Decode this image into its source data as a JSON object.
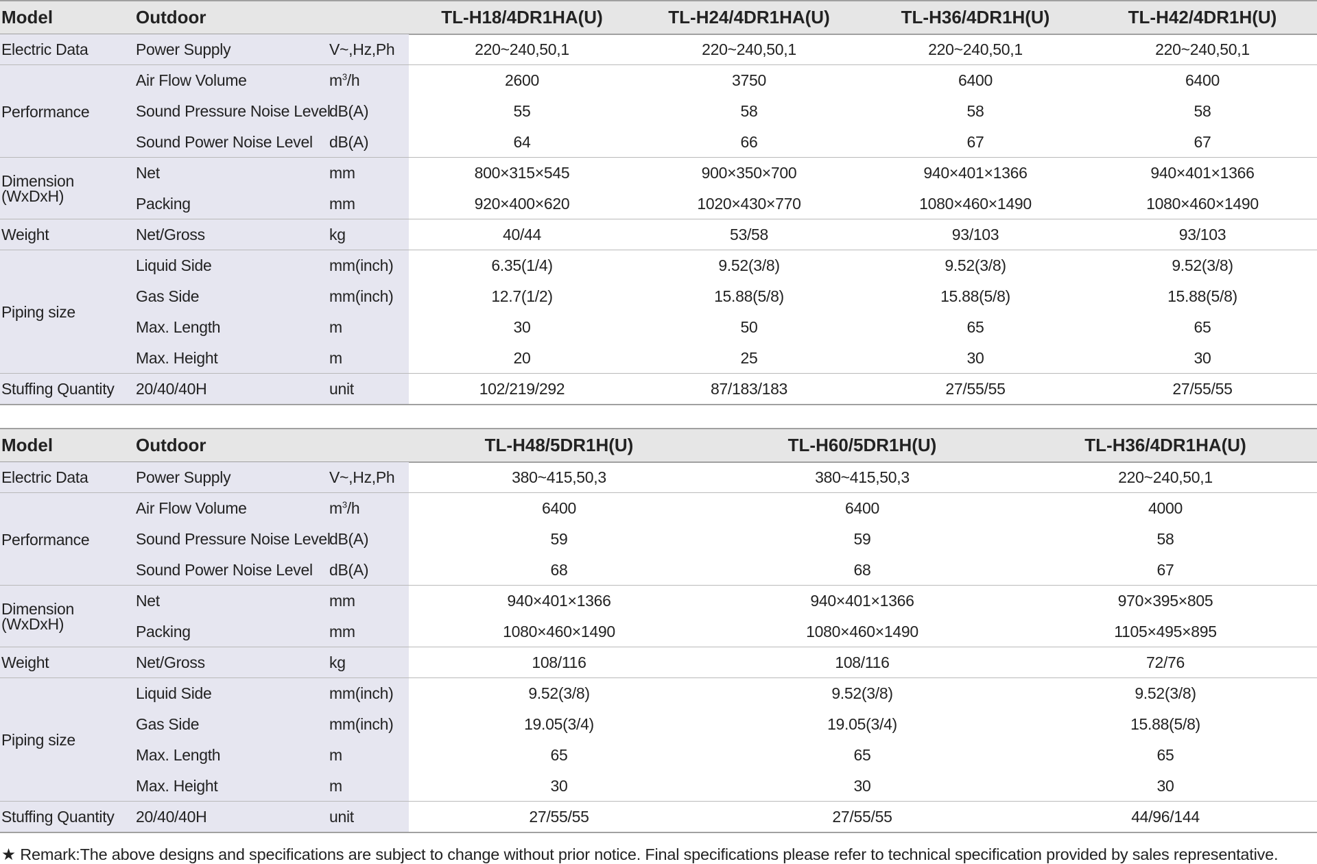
{
  "tables": [
    {
      "header": {
        "model": "Model",
        "outdoor": "Outdoor",
        "models": [
          "TL-H18/4DR1HA(U)",
          "TL-H24/4DR1HA(U)",
          "TL-H36/4DR1H(U)",
          "TL-H42/4DR1H(U)"
        ]
      },
      "rows": [
        {
          "category": "Electric Data",
          "item": "Power Supply",
          "unit": "V~,Hz,Ph",
          "values": [
            "220~240,50,1",
            "220~240,50,1",
            "220~240,50,1",
            "220~240,50,1"
          ]
        },
        {
          "category": "",
          "item": "Air Flow Volume",
          "unit": "m³/h",
          "values": [
            "2600",
            "3750",
            "6400",
            "6400"
          ]
        },
        {
          "category": "",
          "item": "Sound Pressure Noise Level",
          "unit": "dB(A)",
          "values": [
            "55",
            "58",
            "58",
            "58"
          ]
        },
        {
          "category": "",
          "item": "Sound Power Noise Level",
          "unit": "dB(A)",
          "values": [
            "64",
            "66",
            "67",
            "67"
          ]
        },
        {
          "category": "",
          "item": "Net",
          "unit": "mm",
          "values": [
            "800×315×545",
            "900×350×700",
            "940×401×1366",
            "940×401×1366"
          ]
        },
        {
          "category": "",
          "item": "Packing",
          "unit": "mm",
          "values": [
            "920×400×620",
            "1020×430×770",
            "1080×460×1490",
            "1080×460×1490"
          ]
        },
        {
          "category": "Weight",
          "item": "Net/Gross",
          "unit": "kg",
          "values": [
            "40/44",
            "53/58",
            "93/103",
            "93/103"
          ]
        },
        {
          "category": "",
          "item": "Liquid Side",
          "unit": "mm(inch)",
          "values": [
            "6.35(1/4)",
            "9.52(3/8)",
            "9.52(3/8)",
            "9.52(3/8)"
          ]
        },
        {
          "category": "",
          "item": "Gas Side",
          "unit": "mm(inch)",
          "values": [
            "12.7(1/2)",
            "15.88(5/8)",
            "15.88(5/8)",
            "15.88(5/8)"
          ]
        },
        {
          "category": "",
          "item": "Max. Length",
          "unit": "m",
          "values": [
            "30",
            "50",
            "65",
            "65"
          ]
        },
        {
          "category": "",
          "item": "Max. Height",
          "unit": "m",
          "values": [
            "20",
            "25",
            "30",
            "30"
          ]
        },
        {
          "category": "Stuffing Quantity",
          "item": "20/40/40H",
          "unit": "unit",
          "values": [
            "102/219/292",
            "87/183/183",
            "27/55/55",
            "27/55/55"
          ]
        }
      ],
      "groups": {
        "performance": "Performance",
        "dimension": "Dimension\n(WxDxH)",
        "piping": "Piping size"
      }
    },
    {
      "header": {
        "model": "Model",
        "outdoor": "Outdoor",
        "models": [
          "TL-H48/5DR1H(U)",
          "TL-H60/5DR1H(U)",
          "TL-H36/4DR1HA(U)"
        ]
      },
      "rows": [
        {
          "category": "Electric Data",
          "item": "Power Supply",
          "unit": "V~,Hz,Ph",
          "values": [
            "380~415,50,3",
            "380~415,50,3",
            "220~240,50,1"
          ]
        },
        {
          "category": "",
          "item": "Air Flow Volume",
          "unit": "m³/h",
          "values": [
            "6400",
            "6400",
            "4000"
          ]
        },
        {
          "category": "",
          "item": "Sound Pressure Noise Level",
          "unit": "dB(A)",
          "values": [
            "59",
            "59",
            "58"
          ]
        },
        {
          "category": "",
          "item": "Sound Power Noise Level",
          "unit": "dB(A)",
          "values": [
            "68",
            "68",
            "67"
          ]
        },
        {
          "category": "",
          "item": "Net",
          "unit": "mm",
          "values": [
            "940×401×1366",
            "940×401×1366",
            "970×395×805"
          ]
        },
        {
          "category": "",
          "item": "Packing",
          "unit": "mm",
          "values": [
            "1080×460×1490",
            "1080×460×1490",
            "1105×495×895"
          ]
        },
        {
          "category": "Weight",
          "item": "Net/Gross",
          "unit": "kg",
          "values": [
            "108/116",
            "108/116",
            "72/76"
          ]
        },
        {
          "category": "",
          "item": "Liquid Side",
          "unit": "mm(inch)",
          "values": [
            "9.52(3/8)",
            "9.52(3/8)",
            "9.52(3/8)"
          ]
        },
        {
          "category": "",
          "item": "Gas Side",
          "unit": "mm(inch)",
          "values": [
            "19.05(3/4)",
            "19.05(3/4)",
            "15.88(5/8)"
          ]
        },
        {
          "category": "",
          "item": "Max. Length",
          "unit": "m",
          "values": [
            "65",
            "65",
            "65"
          ]
        },
        {
          "category": "",
          "item": "Max. Height",
          "unit": "m",
          "values": [
            "30",
            "30",
            "30"
          ]
        },
        {
          "category": "Stuffing Quantity",
          "item": "20/40/40H",
          "unit": "unit",
          "values": [
            "27/55/55",
            "27/55/55",
            "44/96/144"
          ]
        }
      ],
      "groups": {
        "performance": "Performance",
        "dimension": "Dimension\n(WxDxH)",
        "piping": "Piping size"
      }
    }
  ],
  "remark": "★ Remark:The above designs and specifications are subject to change without prior notice. Final specifications please refer to technical specification provided by sales representative."
}
